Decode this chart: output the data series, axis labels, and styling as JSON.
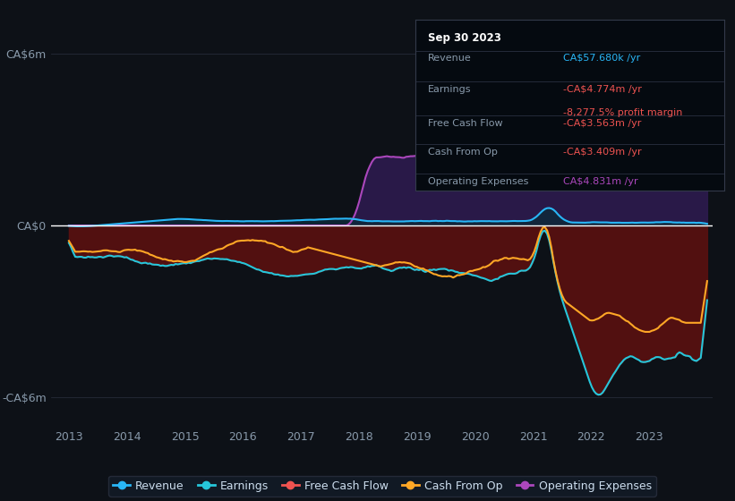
{
  "bg_color": "#0d1117",
  "ylim": [
    -7000000,
    7000000
  ],
  "yticks": [
    -6000000,
    0,
    6000000
  ],
  "ytick_labels": [
    "-CA$6m",
    "CA$0",
    "CA$6m"
  ],
  "xlabel_years": [
    "2013",
    "2014",
    "2015",
    "2016",
    "2017",
    "2018",
    "2019",
    "2020",
    "2021",
    "2022",
    "2023"
  ],
  "colors": {
    "revenue": "#29b6f6",
    "earnings": "#26c6da",
    "free_cash_flow": "#ef5350",
    "cash_from_op": "#ffa726",
    "operating_expenses": "#ab47bc",
    "zero_line": "#ffffff",
    "grid": "#2a3040"
  },
  "info_box": {
    "title": "Sep 30 2023",
    "revenue_label": "Revenue",
    "revenue_value": "CA$57.680k",
    "revenue_color": "#29b6f6",
    "earnings_label": "Earnings",
    "earnings_value": "-CA$4.774m",
    "earnings_color": "#ef5350",
    "profit_margin": "-8,277.5% profit margin",
    "profit_margin_color": "#ef5350",
    "fcf_label": "Free Cash Flow",
    "fcf_value": "-CA$3.563m",
    "fcf_color": "#ef5350",
    "cfop_label": "Cash From Op",
    "cfop_value": "-CA$3.409m",
    "cfop_color": "#ef5350",
    "opex_label": "Operating Expenses",
    "opex_value": "CA$4.831m",
    "opex_color": "#ab47bc"
  },
  "legend": {
    "items": [
      "Revenue",
      "Earnings",
      "Free Cash Flow",
      "Cash From Op",
      "Operating Expenses"
    ],
    "colors": [
      "#29b6f6",
      "#26c6da",
      "#ef5350",
      "#ffa726",
      "#ab47bc"
    ]
  }
}
